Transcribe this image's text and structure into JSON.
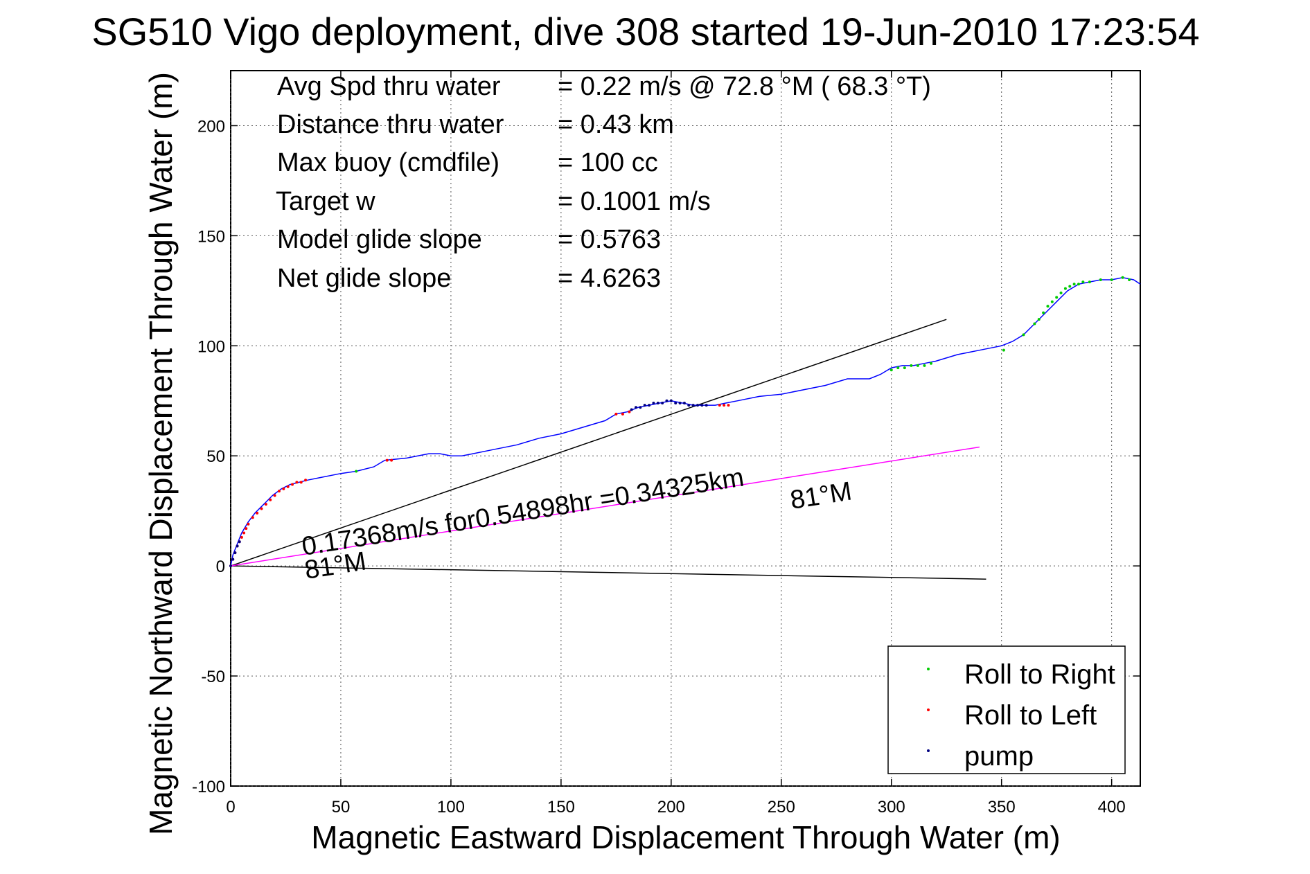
{
  "chart_data": {
    "type": "line",
    "title": "SG510 Vigo deployment, dive 308 started 19-Jun-2010 17:23:54",
    "xlabel": "Magnetic Eastward Displacement Through Water (m)",
    "ylabel": "Magnetic Northward Displacement Through Water (m)",
    "xlim": [
      0,
      413
    ],
    "ylim": [
      -100,
      225
    ],
    "xticks": [
      "0",
      "50",
      "100",
      "150",
      "200",
      "250",
      "300",
      "350",
      "400"
    ],
    "yticks": [
      "-100",
      "-50",
      "0",
      "50",
      "100",
      "150",
      "200"
    ],
    "grid": true,
    "legend_position": "bottom-right",
    "stats": [
      {
        "label": "Avg Spd thru water",
        "value": "=  0.22 m/s @  72.8 °M ( 68.3 °T)"
      },
      {
        "label": "Distance thru water",
        "value": "=  0.43 km"
      },
      {
        "label": "Max buoy (cmdfile)",
        "value": "= 100 cc"
      },
      {
        "label": "Target w",
        "value": "= 0.1001 m/s"
      },
      {
        "label": "Model glide slope",
        "value": "= 0.5763"
      },
      {
        "label": "Net glide slope",
        "value": "= 4.6263"
      }
    ],
    "annotations": {
      "speed_line_label": "0.17368m/s for0.54898hr =0.34325km",
      "heading_label_1": "81°M",
      "heading_label_2": "81°M"
    },
    "series": [
      {
        "name": "track",
        "color": "#0000ff",
        "x": [
          0,
          1,
          3,
          5,
          8,
          11,
          15,
          19,
          23,
          27,
          31,
          35,
          40,
          50,
          57,
          65,
          70,
          80,
          90,
          95,
          100,
          105,
          110,
          120,
          130,
          140,
          150,
          160,
          170,
          175,
          180,
          185,
          190,
          195,
          200,
          205,
          210,
          215,
          220,
          225,
          230,
          240,
          250,
          260,
          270,
          280,
          285,
          290,
          295,
          300,
          305,
          310,
          315,
          320,
          330,
          340,
          350,
          355,
          360,
          365,
          370,
          375,
          380,
          385,
          390,
          395,
          400,
          405,
          410,
          413
        ],
        "y": [
          0,
          5,
          10,
          15,
          20,
          24,
          28,
          32,
          35,
          37,
          38,
          39,
          40,
          42,
          43,
          45,
          48,
          49,
          51,
          51,
          50,
          50,
          51,
          53,
          55,
          58,
          60,
          63,
          66,
          69,
          70,
          72,
          73,
          74,
          75,
          74,
          73,
          73,
          73,
          74,
          75,
          77,
          78,
          80,
          82,
          85,
          85,
          85,
          87,
          90,
          91,
          91,
          92,
          93,
          96,
          98,
          100,
          102,
          105,
          110,
          115,
          120,
          125,
          128,
          129,
          130,
          130,
          131,
          130,
          128
        ]
      },
      {
        "name": "Roll to Right",
        "color": "#00cc00",
        "x": [
          57,
          300,
          303,
          306,
          309,
          312,
          315,
          318,
          351,
          360,
          365,
          367,
          369,
          371,
          373,
          375,
          377,
          379,
          381,
          383,
          385,
          387,
          390,
          395,
          400,
          405,
          408
        ],
        "y": [
          43,
          89,
          90,
          90,
          91,
          91,
          91,
          92,
          98,
          105,
          110,
          112,
          115,
          118,
          120,
          122,
          124,
          126,
          127,
          128,
          128,
          129,
          129,
          130,
          130,
          131,
          130
        ]
      },
      {
        "name": "Roll to Left",
        "color": "#ff0000",
        "x": [
          0,
          1,
          2,
          3,
          4,
          5,
          6,
          7,
          8,
          10,
          12,
          14,
          16,
          18,
          20,
          22,
          24,
          26,
          28,
          30,
          32,
          34,
          71,
          73,
          175,
          178,
          181,
          222,
          224,
          226
        ],
        "y": [
          0,
          3,
          6,
          9,
          11,
          13,
          15,
          17,
          19,
          22,
          24,
          26,
          28,
          30,
          32,
          34,
          35,
          36,
          37,
          38,
          38,
          39,
          48,
          48,
          69,
          69,
          70,
          73,
          73,
          73
        ]
      },
      {
        "name": "pump",
        "color": "#000080",
        "x": [
          0,
          1,
          2,
          3,
          4,
          182,
          184,
          186,
          188,
          190,
          192,
          194,
          196,
          198,
          200,
          202,
          204,
          206,
          208,
          210,
          212,
          214,
          216
        ],
        "y": [
          0,
          3,
          6,
          9,
          11,
          71,
          72,
          72,
          73,
          73,
          74,
          74,
          74,
          75,
          75,
          74,
          74,
          74,
          73,
          73,
          73,
          73,
          73
        ]
      }
    ],
    "reference_lines": [
      {
        "color": "#000000",
        "x": [
          0,
          325
        ],
        "y": [
          0,
          112
        ]
      },
      {
        "color": "#000000",
        "x": [
          0,
          343
        ],
        "y": [
          0,
          -6
        ]
      },
      {
        "color": "#ff00ff",
        "x": [
          0,
          340
        ],
        "y": [
          0,
          54
        ]
      }
    ]
  }
}
